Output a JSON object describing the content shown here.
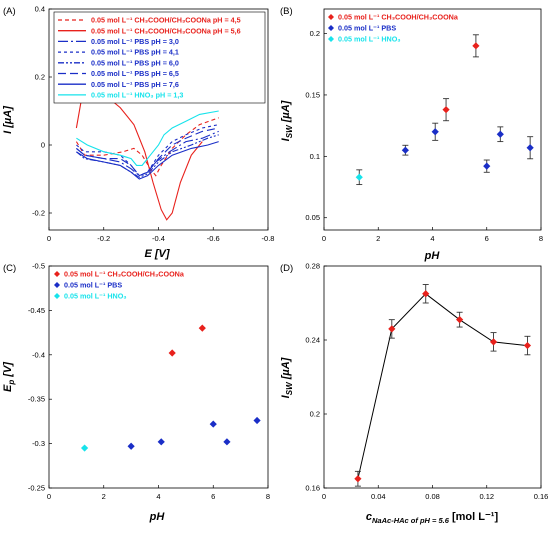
{
  "colors": {
    "red": "#e8211c",
    "darkblue": "#1a2ec7",
    "cyan": "#17e3eb",
    "errorbar": "#333333"
  },
  "chart_data": [
    {
      "panel_label": "(A)",
      "type": "line",
      "xlabel": "E [V]",
      "ylabel": "I [µA]",
      "xlim": [
        0,
        -0.8
      ],
      "ylim": [
        -0.25,
        0.4
      ],
      "xticks": [
        "0",
        "-0.2",
        "-0.4",
        "-0.6",
        "-0.8"
      ],
      "yticks": [
        "0.4",
        "0.2",
        "0",
        "-0.2"
      ],
      "xtick_values": [
        0,
        -0.2,
        -0.4,
        -0.6,
        -0.8
      ],
      "ytick_values": [
        0.4,
        0.2,
        0,
        -0.2
      ],
      "legend_position": "top-right",
      "series": [
        {
          "name": "0.05 mol L⁻¹ CH₃COOH/CH₃COONa pH = 4,5",
          "color": "#e8211c",
          "dash": "4,3",
          "points": [
            [
              -0.1,
              0.01
            ],
            [
              -0.13,
              -0.03
            ],
            [
              -0.2,
              -0.03
            ],
            [
              -0.27,
              -0.02
            ],
            [
              -0.31,
              -0.01
            ],
            [
              -0.34,
              -0.03
            ],
            [
              -0.37,
              -0.07
            ],
            [
              -0.39,
              -0.09
            ],
            [
              -0.41,
              -0.06
            ],
            [
              -0.45,
              -0.01
            ],
            [
              -0.5,
              0.03
            ],
            [
              -0.55,
              0.06
            ],
            [
              -0.62,
              0.08
            ]
          ]
        },
        {
          "name": "0.05 mol L⁻¹ CH₃COOH/CH₃COONa pH = 5,6",
          "color": "#e8211c",
          "dash": "",
          "points": [
            [
              -0.1,
              0.05
            ],
            [
              -0.12,
              0.14
            ],
            [
              -0.15,
              0.17
            ],
            [
              -0.2,
              0.15
            ],
            [
              -0.26,
              0.11
            ],
            [
              -0.31,
              0.06
            ],
            [
              -0.35,
              -0.02
            ],
            [
              -0.38,
              -0.11
            ],
            [
              -0.41,
              -0.19
            ],
            [
              -0.43,
              -0.22
            ],
            [
              -0.45,
              -0.2
            ],
            [
              -0.48,
              -0.11
            ],
            [
              -0.52,
              -0.03
            ],
            [
              -0.56,
              0.01
            ]
          ]
        },
        {
          "name": "0.05 mol L⁻¹ PBS pH = 3,0",
          "color": "#1a2ec7",
          "dash": "10,3,2,3",
          "points": [
            [
              -0.1,
              -0.01
            ],
            [
              -0.13,
              -0.03
            ],
            [
              -0.2,
              -0.04
            ],
            [
              -0.26,
              -0.05
            ],
            [
              -0.3,
              -0.07
            ],
            [
              -0.33,
              -0.09
            ],
            [
              -0.36,
              -0.08
            ],
            [
              -0.39,
              -0.05
            ],
            [
              -0.44,
              -0.02
            ],
            [
              -0.5,
              0.01
            ],
            [
              -0.56,
              0.02
            ],
            [
              -0.62,
              0.04
            ]
          ]
        },
        {
          "name": "0.05 mol L⁻¹ PBS pH = 4,1",
          "color": "#1a2ec7",
          "dash": "3,3",
          "points": [
            [
              -0.1,
              0.0
            ],
            [
              -0.13,
              -0.02
            ],
            [
              -0.2,
              -0.02
            ],
            [
              -0.26,
              -0.03
            ],
            [
              -0.3,
              -0.06
            ],
            [
              -0.33,
              -0.09
            ],
            [
              -0.36,
              -0.08
            ],
            [
              -0.4,
              -0.03
            ],
            [
              -0.45,
              0.01
            ],
            [
              -0.5,
              0.03
            ],
            [
              -0.56,
              0.05
            ],
            [
              -0.62,
              0.06
            ]
          ]
        },
        {
          "name": "0.05 mol L⁻¹ PBS pH = 6,0",
          "color": "#1a2ec7",
          "dash": "6,2,2,2,2,2",
          "points": [
            [
              -0.1,
              -0.02
            ],
            [
              -0.13,
              -0.04
            ],
            [
              -0.2,
              -0.05
            ],
            [
              -0.26,
              -0.06
            ],
            [
              -0.3,
              -0.08
            ],
            [
              -0.33,
              -0.095
            ],
            [
              -0.36,
              -0.085
            ],
            [
              -0.4,
              -0.05
            ],
            [
              -0.45,
              -0.02
            ],
            [
              -0.52,
              0.0
            ],
            [
              -0.58,
              0.02
            ],
            [
              -0.62,
              0.03
            ]
          ]
        },
        {
          "name": "0.05 mol L⁻¹ PBS pH = 6,5",
          "color": "#1a2ec7",
          "dash": "8,4",
          "points": [
            [
              -0.1,
              -0.01
            ],
            [
              -0.13,
              -0.03
            ],
            [
              -0.2,
              -0.04
            ],
            [
              -0.26,
              -0.04
            ],
            [
              -0.3,
              -0.06
            ],
            [
              -0.33,
              -0.09
            ],
            [
              -0.36,
              -0.08
            ],
            [
              -0.4,
              -0.04
            ],
            [
              -0.45,
              0.0
            ],
            [
              -0.5,
              0.02
            ],
            [
              -0.56,
              0.04
            ],
            [
              -0.62,
              0.05
            ]
          ]
        },
        {
          "name": "0.05 mol L⁻¹ PBS pH = 7,6",
          "color": "#1a2ec7",
          "dash": "",
          "points": [
            [
              -0.1,
              -0.02
            ],
            [
              -0.14,
              -0.04
            ],
            [
              -0.2,
              -0.05
            ],
            [
              -0.26,
              -0.06
            ],
            [
              -0.3,
              -0.08
            ],
            [
              -0.33,
              -0.1
            ],
            [
              -0.36,
              -0.09
            ],
            [
              -0.4,
              -0.06
            ],
            [
              -0.45,
              -0.03
            ],
            [
              -0.52,
              -0.01
            ],
            [
              -0.58,
              0.0
            ],
            [
              -0.62,
              0.01
            ]
          ]
        },
        {
          "name": "0.05 mol L⁻¹ HNO₃ pH = 1,3",
          "color": "#17e3eb",
          "dash": "",
          "points": [
            [
              -0.1,
              0.02
            ],
            [
              -0.14,
              0.0
            ],
            [
              -0.2,
              -0.02
            ],
            [
              -0.26,
              -0.03
            ],
            [
              -0.3,
              -0.04
            ],
            [
              -0.32,
              -0.06
            ],
            [
              -0.34,
              -0.06
            ],
            [
              -0.37,
              -0.03
            ],
            [
              -0.4,
              0.0
            ],
            [
              -0.42,
              0.03
            ],
            [
              -0.45,
              0.05
            ],
            [
              -0.5,
              0.07
            ],
            [
              -0.55,
              0.09
            ],
            [
              -0.62,
              0.1
            ]
          ]
        }
      ]
    },
    {
      "panel_label": "(B)",
      "type": "scatter",
      "xlabel": "pH",
      "ylabel": "I_SW [µA]",
      "ylabel_main": "I",
      "ylabel_sub": "SW",
      "ylabel_unit": " [µA]",
      "xlim": [
        0,
        8
      ],
      "ylim": [
        0.04,
        0.22
      ],
      "xticks": [
        "0",
        "2",
        "4",
        "6",
        "8"
      ],
      "yticks": [
        "0.2",
        "0.15",
        "0.1",
        "0.05"
      ],
      "xtick_values": [
        0,
        2,
        4,
        6,
        8
      ],
      "ytick_values": [
        0.2,
        0.15,
        0.1,
        0.05
      ],
      "legend_position": "top-left",
      "series": [
        {
          "name": "0.05 mol L⁻¹ CH₃COOH/CH₃COONa",
          "color": "#e8211c",
          "points": [
            [
              4.5,
              0.138,
              0.009
            ],
            [
              5.6,
              0.19,
              0.009
            ]
          ]
        },
        {
          "name": "0.05 mol L⁻¹ PBS",
          "color": "#1a2ec7",
          "points": [
            [
              3.0,
              0.105,
              0.004
            ],
            [
              4.1,
              0.12,
              0.007
            ],
            [
              6.0,
              0.092,
              0.005
            ],
            [
              6.5,
              0.118,
              0.006
            ],
            [
              7.6,
              0.107,
              0.009
            ]
          ]
        },
        {
          "name": "0.05 mol L⁻¹ HNO₃",
          "color": "#17e3eb",
          "points": [
            [
              1.3,
              0.083,
              0.006
            ]
          ]
        }
      ]
    },
    {
      "panel_label": "(C)",
      "type": "scatter",
      "xlabel": "pH",
      "ylabel": "E_p [V]",
      "ylabel_main": "E",
      "ylabel_sub": "p",
      "ylabel_unit": " [V]",
      "xlim": [
        0,
        8
      ],
      "ylim": [
        -0.25,
        -0.5
      ],
      "xticks": [
        "0",
        "2",
        "4",
        "6",
        "8"
      ],
      "yticks": [
        "-0.5",
        "-0.45",
        "-0.4",
        "-0.35",
        "-0.3",
        "-0.25"
      ],
      "xtick_values": [
        0,
        2,
        4,
        6,
        8
      ],
      "ytick_values": [
        -0.5,
        -0.45,
        -0.4,
        -0.35,
        -0.3,
        -0.25
      ],
      "legend_position": "top-left",
      "series": [
        {
          "name": "0.05 mol L⁻¹ CH₃COOH/CH₃COONa",
          "color": "#e8211c",
          "points": [
            [
              4.5,
              -0.402
            ],
            [
              5.6,
              -0.43
            ]
          ]
        },
        {
          "name": "0.05 mol L⁻¹ PBS",
          "color": "#1a2ec7",
          "points": [
            [
              3.0,
              -0.297
            ],
            [
              4.1,
              -0.302
            ],
            [
              6.0,
              -0.322
            ],
            [
              6.5,
              -0.302
            ],
            [
              7.6,
              -0.326
            ]
          ]
        },
        {
          "name": "0.05 mol L⁻¹ HNO₃",
          "color": "#17e3eb",
          "points": [
            [
              1.3,
              -0.295
            ]
          ]
        }
      ]
    },
    {
      "panel_label": "(D)",
      "type": "line",
      "xlabel": "c_NaAc-HAc of pH = 5.6 [mol L⁻¹]",
      "xlabel_main": "c",
      "xlabel_sub": "NaAc-HAc of pH = 5.6",
      "xlabel_unit": " [mol L⁻¹]",
      "ylabel": "I_SW [µA]",
      "ylabel_main": "I",
      "ylabel_sub": "SW",
      "ylabel_unit": " [µA]",
      "xlim": [
        0,
        0.16
      ],
      "ylim": [
        0.16,
        0.28
      ],
      "xticks": [
        "0",
        "0.04",
        "0.08",
        "0.12",
        "0.16"
      ],
      "yticks": [
        "0.28",
        "0.24",
        "0.2",
        "0.16"
      ],
      "xtick_values": [
        0,
        0.04,
        0.08,
        0.12,
        0.16
      ],
      "ytick_values": [
        0.28,
        0.24,
        0.2,
        0.16
      ],
      "series": [
        {
          "color": "#e8211c",
          "points": [
            [
              0.025,
              0.165,
              0.004
            ],
            [
              0.05,
              0.246,
              0.005
            ],
            [
              0.075,
              0.265,
              0.005
            ],
            [
              0.1,
              0.251,
              0.004
            ],
            [
              0.125,
              0.239,
              0.005
            ],
            [
              0.15,
              0.237,
              0.005
            ]
          ]
        }
      ]
    }
  ]
}
